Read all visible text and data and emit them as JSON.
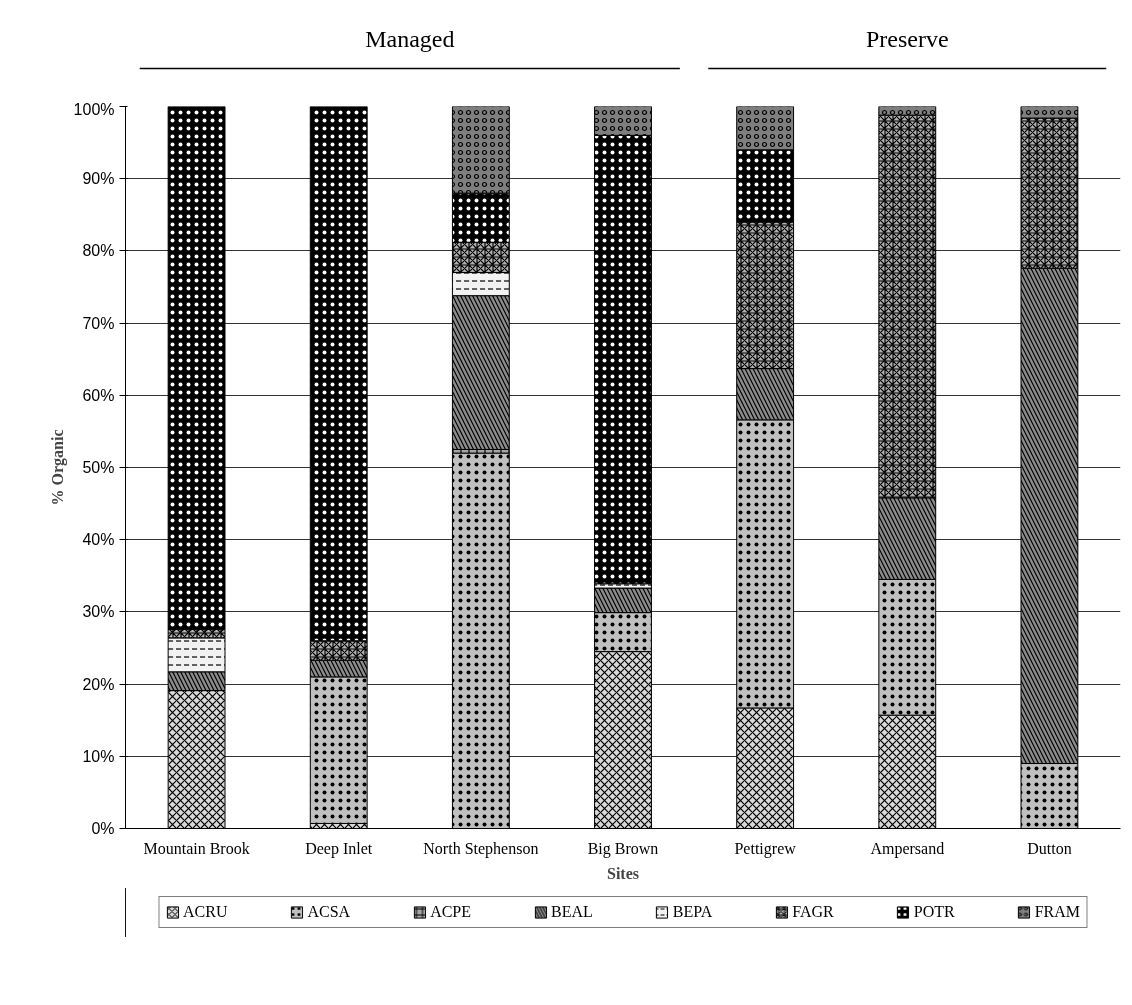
{
  "chart_data": {
    "type": "bar",
    "stacked": true,
    "categories": [
      "Mountain Brook",
      "Deep Inlet",
      "North Stephenson",
      "Big Brown",
      "Pettigrew",
      "Ampersand",
      "Dutton"
    ],
    "xlabel": "Sites",
    "ylabel": "% Organic",
    "annotations": [
      "Managed",
      "Preserve"
    ],
    "series": [
      {
        "name": "ACRU",
        "color": "#d9d9d9",
        "values": [
          19.1,
          0.7,
          null,
          24.5,
          16.7,
          15.7,
          null
        ]
      },
      {
        "name": "ACSA",
        "color": "#bfbfbf",
        "values": [
          null,
          20.3,
          52,
          5.4,
          39.9,
          18.8,
          9
        ]
      },
      {
        "name": "ACPE",
        "color": "#a6a6a6",
        "values": [
          null,
          null,
          0.5,
          null,
          null,
          null,
          null
        ]
      },
      {
        "name": "BEAL",
        "color": "#8c8c8c",
        "values": [
          2.6,
          2.3,
          21.3,
          3.4,
          7.1,
          11.3,
          68.6
        ]
      },
      {
        "name": "BEPA",
        "color": "#f2f2f2",
        "values": [
          4.7,
          null,
          3.2,
          0.6,
          null,
          null,
          null
        ]
      },
      {
        "name": "FAGR",
        "color": "#b3b3b3",
        "values": [
          1.2,
          2.7,
          4.2,
          null,
          20.3,
          53,
          20.8
        ]
      },
      {
        "name": "POTR",
        "color": "#000000",
        "values": [
          72.4,
          74,
          6.8,
          62.1,
          10,
          null,
          null
        ]
      },
      {
        "name": "FRAM",
        "color": "#7f7f7f",
        "values": [
          null,
          null,
          12,
          4,
          6,
          1.2,
          1.6
        ]
      }
    ],
    "ylim": [
      0,
      100
    ],
    "yticks": [
      {
        "value": 0,
        "label": "0%"
      },
      {
        "value": 10,
        "label": "10%"
      },
      {
        "value": 20,
        "label": "20%"
      },
      {
        "value": 30,
        "label": "30%"
      },
      {
        "value": 40,
        "label": "40%"
      },
      {
        "value": 50,
        "label": "50%"
      },
      {
        "value": 60,
        "label": "60%"
      },
      {
        "value": 70,
        "label": "70%"
      },
      {
        "value": 80,
        "label": "80%"
      },
      {
        "value": 90,
        "label": "90%"
      },
      {
        "value": 100,
        "label": "100%"
      }
    ],
    "grid": "y",
    "legend": "bottom"
  }
}
